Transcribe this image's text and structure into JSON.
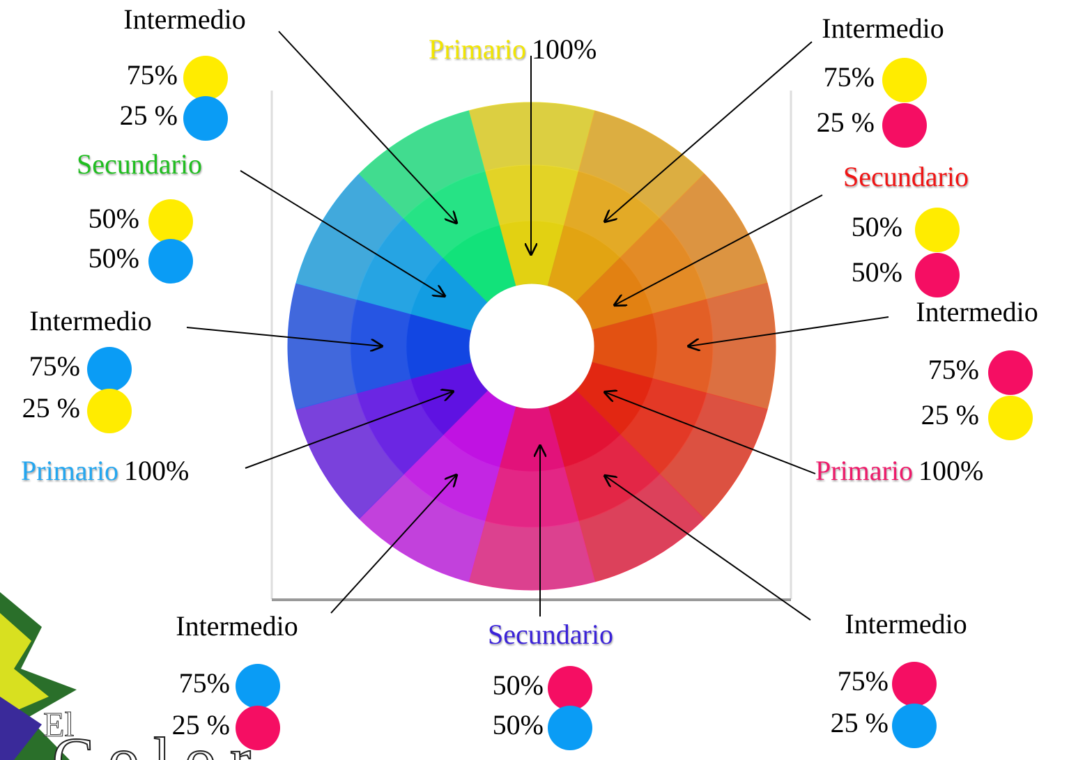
{
  "labels": [
    {
      "title": "Intermedio",
      "color": "#000000",
      "items": [
        {
          "text": "75%",
          "swatch": "#ffec00"
        },
        {
          "text": "25 %",
          "swatch": "#0a9cf5"
        }
      ]
    },
    {
      "title": "Primario",
      "suffix": "100%",
      "color": "#f2e600",
      "items": []
    },
    {
      "title": "Intermedio",
      "color": "#000000",
      "items": [
        {
          "text": "75%",
          "swatch": "#ffec00"
        },
        {
          "text": "25 %",
          "swatch": "#f50e63"
        }
      ]
    },
    {
      "title": "Secundario",
      "color": "#1fbe1f",
      "items": [
        {
          "text": "50%",
          "swatch": "#ffec00"
        },
        {
          "text": "50%",
          "swatch": "#0a9cf5"
        }
      ]
    },
    {
      "title": "Secundario",
      "color": "#f01414",
      "items": [
        {
          "text": "50%",
          "swatch": "#ffec00"
        },
        {
          "text": "50%",
          "swatch": "#f50e63"
        }
      ]
    },
    {
      "title": "Intermedio",
      "color": "#000000",
      "items": [
        {
          "text": "75%",
          "swatch": "#0a9cf5"
        },
        {
          "text": "25 %",
          "swatch": "#ffec00"
        }
      ]
    },
    {
      "title": "Intermedio",
      "color": "#000000",
      "items": [
        {
          "text": "75%",
          "swatch": "#f50e63"
        },
        {
          "text": "25 %",
          "swatch": "#ffec00"
        }
      ]
    },
    {
      "title": "Primario",
      "suffix": "100%",
      "color": "#22a6f0",
      "items": []
    },
    {
      "title": "Primario",
      "suffix": "100%",
      "color": "#ee1a6a",
      "items": []
    },
    {
      "title": "Intermedio",
      "color": "#000000",
      "items": [
        {
          "text": "75%",
          "swatch": "#0a9cf5"
        },
        {
          "text": "25 %",
          "swatch": "#f50e63"
        }
      ]
    },
    {
      "title": "Secundario",
      "color": "#3a22d8",
      "items": [
        {
          "text": "50%",
          "swatch": "#f50e63"
        },
        {
          "text": "50%",
          "swatch": "#0a9cf5"
        }
      ]
    },
    {
      "title": "Intermedio",
      "color": "#000000",
      "items": [
        {
          "text": "75%",
          "swatch": "#f50e63"
        },
        {
          "text": "25 %",
          "swatch": "#0a9cf5"
        }
      ]
    }
  ],
  "logo": {
    "line1": "El",
    "line2": "Color"
  }
}
